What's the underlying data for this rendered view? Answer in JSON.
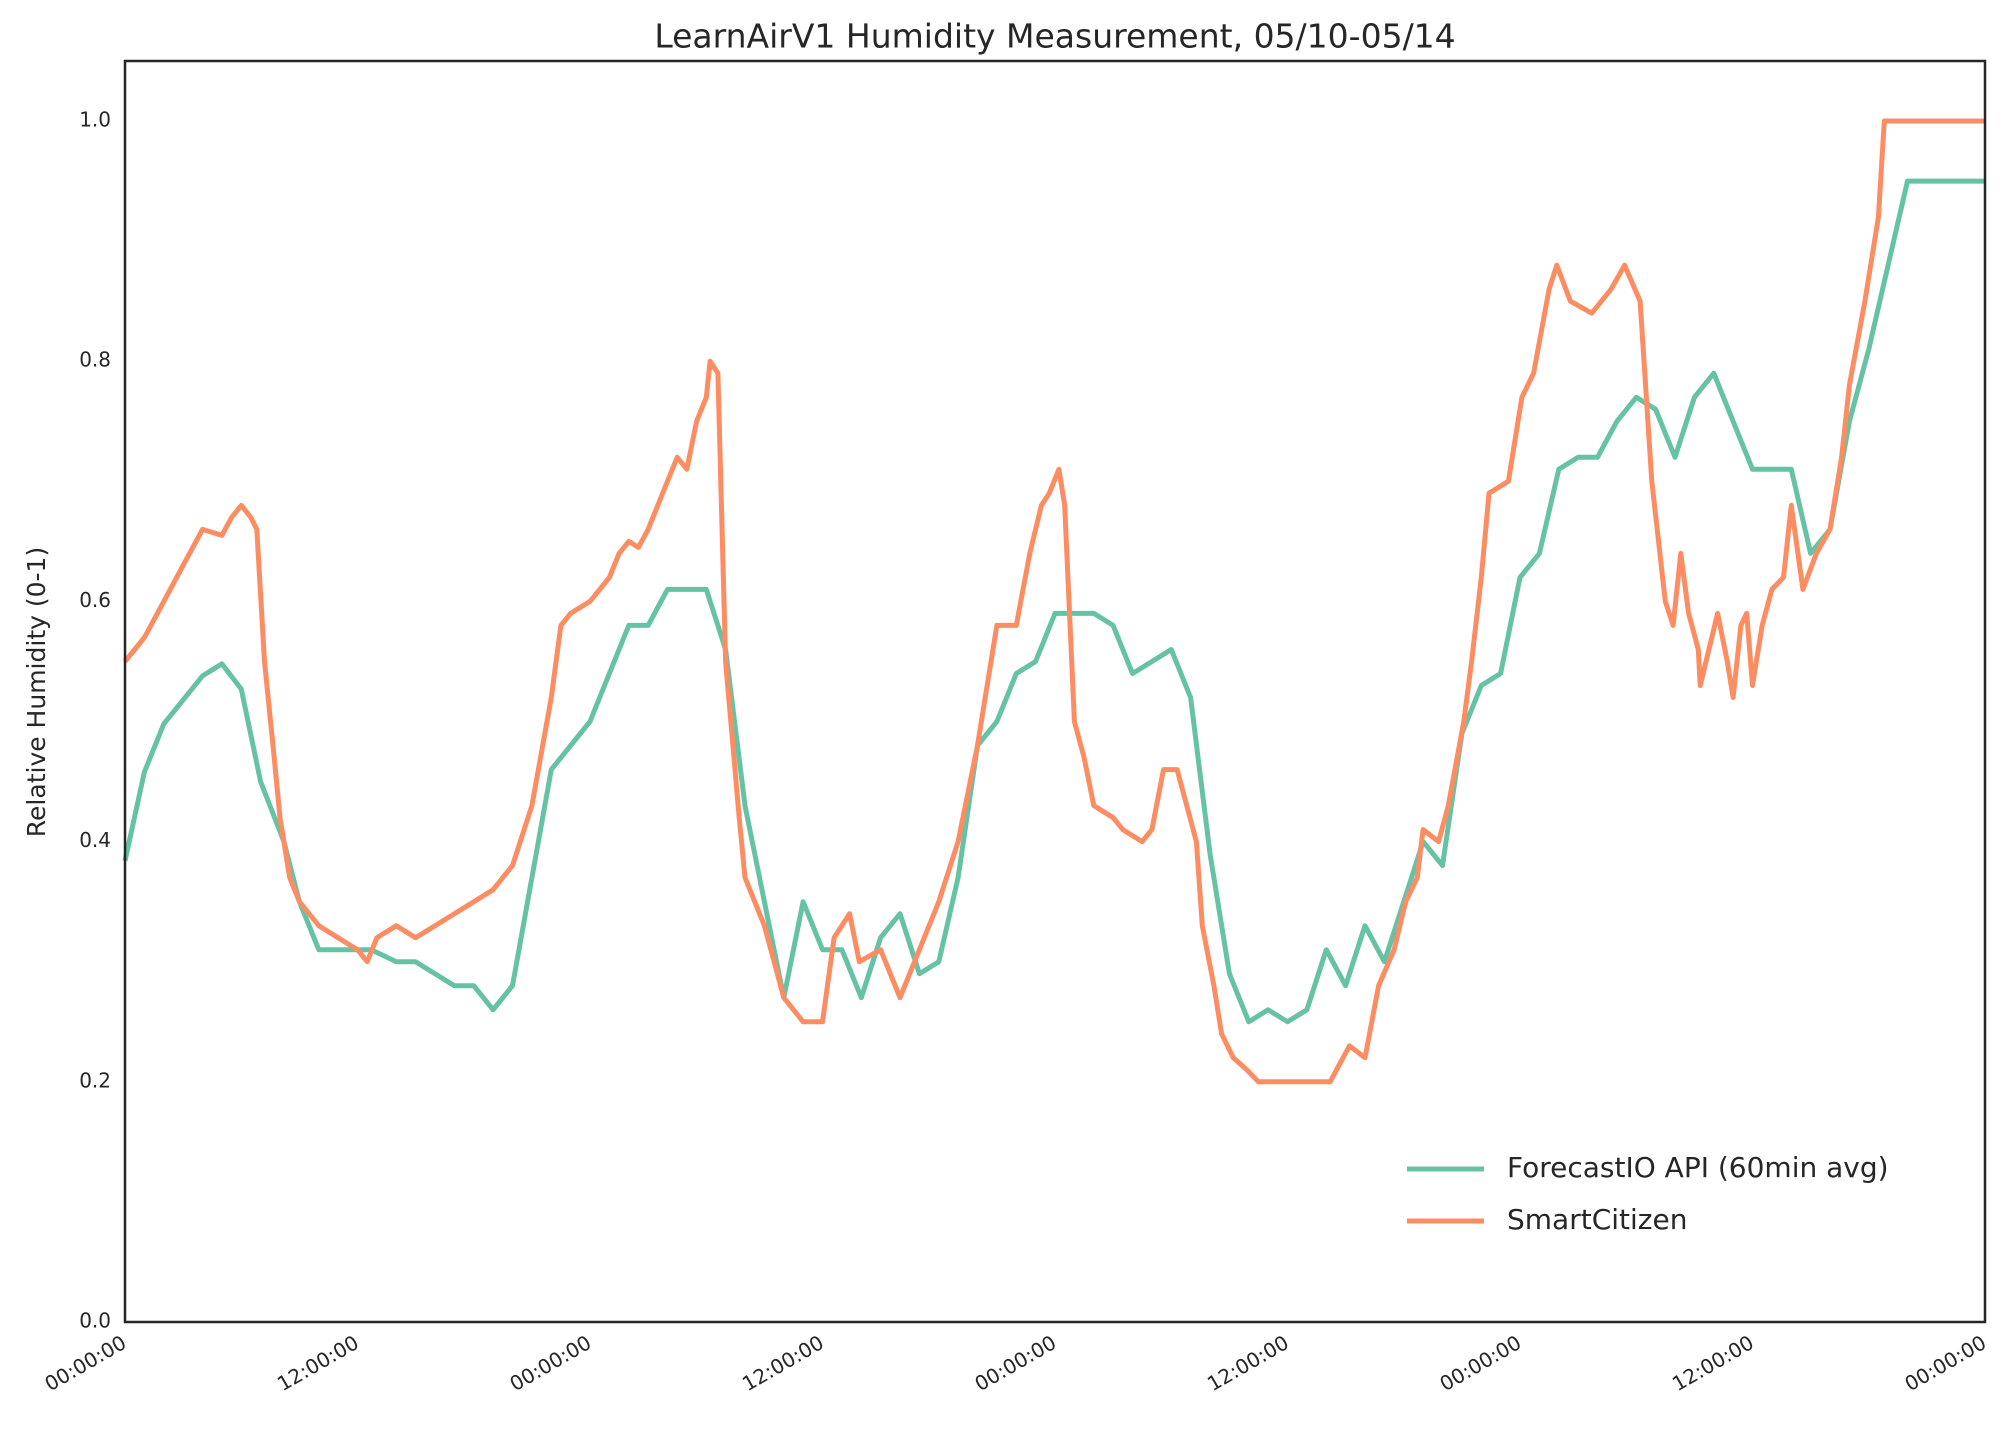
{
  "chart_data": {
    "type": "line",
    "title": "LearnAirV1 Humidity Measurement, 05/10-05/14",
    "y_label": "Relative Humidity (0-1)",
    "xlim": [
      0,
      96
    ],
    "xticks": [
      {
        "value": 0,
        "label": "00:00:00"
      },
      {
        "value": 12,
        "label": "12:00:00"
      },
      {
        "value": 24,
        "label": "00:00:00"
      },
      {
        "value": 36,
        "label": "12:00:00"
      },
      {
        "value": 48,
        "label": "00:00:00"
      },
      {
        "value": 60,
        "label": "12:00:00"
      },
      {
        "value": 72,
        "label": "00:00:00"
      },
      {
        "value": 84,
        "label": "12:00:00"
      },
      {
        "value": 96,
        "label": "00:00:00"
      }
    ],
    "ylim": [
      0,
      1.05
    ],
    "yticks": [
      {
        "value": 0,
        "label": "0.0"
      },
      0.2,
      0.4,
      0.6,
      0.8,
      {
        "value": 1,
        "label": "1.0"
      }
    ],
    "grid": false,
    "legend": "lower right",
    "series": [
      {
        "name": "ForecastIO API (60min avg)",
        "color": "#66c2a5",
        "x": [
          0,
          1,
          2,
          4,
          5,
          6,
          7,
          8.2,
          9,
          10,
          12.7,
          14,
          15,
          17,
          18,
          19,
          20,
          22,
          24,
          26,
          27,
          28,
          30,
          31,
          32,
          33,
          34,
          35,
          36,
          37,
          38,
          39,
          40,
          41,
          42,
          43,
          44,
          45,
          46,
          47,
          48,
          50,
          51,
          52,
          54,
          55,
          56,
          57,
          58,
          59,
          60,
          61,
          62,
          63,
          64,
          65,
          66,
          67,
          68,
          69,
          70,
          71,
          72,
          73,
          74,
          75,
          76,
          77,
          78,
          79,
          80,
          81,
          82,
          83,
          84,
          86,
          87,
          88,
          89,
          90,
          91,
          92,
          96
        ],
        "values": [
          0.384,
          0.458,
          0.498,
          0.538,
          0.548,
          0.527,
          0.45,
          0.4,
          0.35,
          0.31,
          0.31,
          0.3,
          0.3,
          0.28,
          0.28,
          0.26,
          0.28,
          0.46,
          0.5,
          0.58,
          0.58,
          0.61,
          0.61,
          0.56,
          0.43,
          0.35,
          0.27,
          0.35,
          0.31,
          0.31,
          0.27,
          0.32,
          0.34,
          0.29,
          0.3,
          0.37,
          0.48,
          0.5,
          0.54,
          0.55,
          0.59,
          0.59,
          0.58,
          0.54,
          0.56,
          0.52,
          0.39,
          0.29,
          0.25,
          0.26,
          0.25,
          0.26,
          0.31,
          0.28,
          0.33,
          0.3,
          0.35,
          0.4,
          0.38,
          0.49,
          0.53,
          0.54,
          0.62,
          0.64,
          0.71,
          0.72,
          0.72,
          0.75,
          0.77,
          0.76,
          0.72,
          0.77,
          0.79,
          0.75,
          0.71,
          0.71,
          0.64,
          0.66,
          0.75,
          0.81,
          0.88,
          0.95,
          0.95
        ]
      },
      {
        "name": "SmartCitizen",
        "color": "#fc8d62",
        "x": [
          0,
          1,
          2,
          3,
          4,
          5,
          5.5,
          6,
          6.5,
          6.8,
          7.2,
          7.7,
          8,
          8.5,
          9,
          10,
          11,
          12,
          12.5,
          13,
          14,
          15,
          16,
          17,
          18,
          19,
          20,
          21,
          22,
          22.5,
          23,
          24,
          25,
          25.5,
          26,
          26.5,
          27,
          28,
          28.5,
          29,
          29.5,
          30,
          30.2,
          30.6,
          31,
          31.7,
          32,
          33,
          33.5,
          34,
          35,
          36,
          36.6,
          37.4,
          37.9,
          39,
          40,
          41,
          42,
          43,
          44,
          44.4,
          45,
          46,
          46.7,
          47.3,
          47.7,
          48.2,
          48.5,
          49,
          49.5,
          50,
          51,
          51.5,
          52.5,
          53,
          53.6,
          54.3,
          55.3,
          55.6,
          56.2,
          56.6,
          57.2,
          57.9,
          58.5,
          59.5,
          62.2,
          63.2,
          64,
          64.7,
          65.5,
          66.1,
          66.7,
          67,
          67.8,
          68.3,
          69.1,
          69.5,
          70,
          70.4,
          71.4,
          72.1,
          72.7,
          73.5,
          73.9,
          74.6,
          75.7,
          76.7,
          77.4,
          78.2,
          78.8,
          79.5,
          79.9,
          80.3,
          80.7,
          81.2,
          81.3,
          81.9,
          82.2,
          82.7,
          83,
          83.4,
          83.7,
          84,
          84.5,
          85,
          85.6,
          86,
          86.6,
          87.3,
          88,
          88.6,
          89,
          89.8,
          90.5,
          90.8,
          96
        ],
        "values": [
          0.55,
          0.57,
          0.6,
          0.63,
          0.66,
          0.655,
          0.67,
          0.68,
          0.67,
          0.66,
          0.55,
          0.47,
          0.42,
          0.37,
          0.35,
          0.33,
          0.32,
          0.31,
          0.3,
          0.32,
          0.33,
          0.32,
          0.33,
          0.34,
          0.35,
          0.36,
          0.38,
          0.43,
          0.52,
          0.58,
          0.59,
          0.6,
          0.62,
          0.64,
          0.65,
          0.645,
          0.66,
          0.7,
          0.72,
          0.71,
          0.75,
          0.77,
          0.8,
          0.79,
          0.55,
          0.42,
          0.37,
          0.33,
          0.3,
          0.27,
          0.25,
          0.25,
          0.32,
          0.34,
          0.3,
          0.31,
          0.27,
          0.31,
          0.35,
          0.4,
          0.48,
          0.52,
          0.58,
          0.58,
          0.64,
          0.68,
          0.69,
          0.71,
          0.68,
          0.5,
          0.47,
          0.43,
          0.42,
          0.41,
          0.4,
          0.41,
          0.46,
          0.46,
          0.4,
          0.33,
          0.28,
          0.24,
          0.22,
          0.21,
          0.2,
          0.2,
          0.2,
          0.23,
          0.22,
          0.28,
          0.31,
          0.35,
          0.37,
          0.41,
          0.4,
          0.43,
          0.5,
          0.55,
          0.62,
          0.69,
          0.7,
          0.77,
          0.79,
          0.86,
          0.88,
          0.85,
          0.84,
          0.86,
          0.88,
          0.85,
          0.7,
          0.6,
          0.58,
          0.64,
          0.59,
          0.56,
          0.53,
          0.57,
          0.59,
          0.55,
          0.52,
          0.58,
          0.59,
          0.53,
          0.58,
          0.61,
          0.62,
          0.68,
          0.61,
          0.64,
          0.66,
          0.72,
          0.78,
          0.85,
          0.92,
          1.0,
          1.0
        ]
      }
    ]
  }
}
